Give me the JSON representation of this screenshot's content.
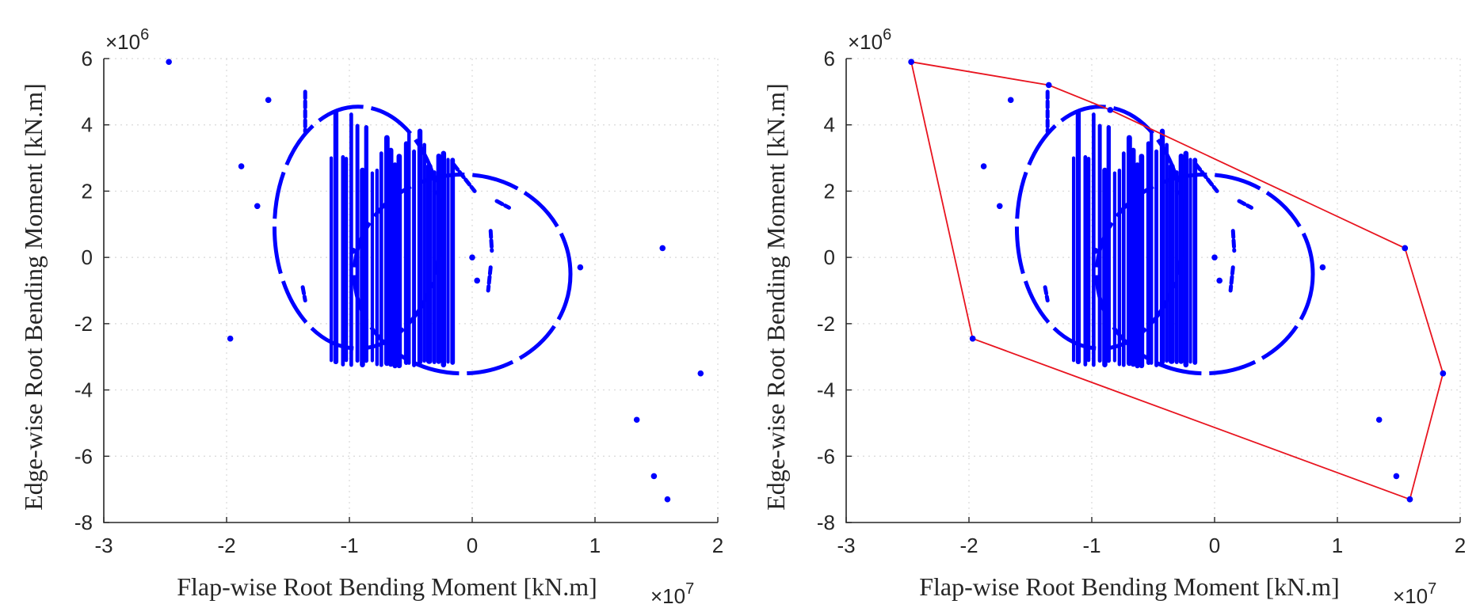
{
  "colors": {
    "points": "#0000ff",
    "hull": "#e8141f",
    "axis": "#262626",
    "grid": "#d9d9d9"
  },
  "chart_data": [
    {
      "type": "scatter",
      "xlabel": "Flap-wise Root Bending Moment [kN.m]",
      "ylabel": "Edge-wise Root Bending Moment [kN.m]",
      "x_exponent": "×10",
      "x_exponent_power": "7",
      "y_exponent": "×10",
      "y_exponent_power": "6",
      "x_scale": 10000000,
      "y_scale": 1000000,
      "xlim": [
        -3,
        2
      ],
      "ylim": [
        -8,
        6
      ],
      "xticks": [
        -3,
        -2,
        -1,
        0,
        1,
        2
      ],
      "yticks": [
        -8,
        -6,
        -4,
        -2,
        0,
        2,
        4,
        6
      ],
      "xticklabels": [
        "-3",
        "-2",
        "-1",
        "0",
        "1",
        "2"
      ],
      "yticklabels": [
        "-8",
        "-6",
        "-4",
        "-2",
        "0",
        "2",
        "4",
        "6"
      ],
      "grid": true,
      "outlier_points": [
        [
          -2.47,
          5.9
        ],
        [
          -1.66,
          4.75
        ],
        [
          -1.88,
          2.75
        ],
        [
          -1.75,
          1.55
        ],
        [
          -0.97,
          0.2
        ],
        [
          -1.97,
          -2.45
        ],
        [
          0.0,
          0.0
        ],
        [
          0.04,
          -0.7
        ],
        [
          0.88,
          -0.3
        ],
        [
          1.55,
          0.28
        ],
        [
          1.86,
          -3.5
        ],
        [
          1.34,
          -4.9
        ],
        [
          1.48,
          -6.6
        ],
        [
          1.59,
          -7.3
        ]
      ],
      "point_cloud_clusters": [
        {
          "shape": "ellipse",
          "cx": -0.93,
          "cy": 0.9,
          "rx": 0.68,
          "ry": 3.65
        },
        {
          "shape": "ellipse",
          "cx": -0.08,
          "cy": -0.5,
          "rx": 0.88,
          "ry": 3.0
        },
        {
          "shape": "vertical_strokes",
          "x_from": -1.14,
          "x_to": -0.15,
          "y_low": -3.3,
          "y_high": 4.5
        }
      ],
      "convex_hull": false
    },
    {
      "type": "scatter",
      "xlabel": "Flap-wise Root Bending Moment [kN.m]",
      "ylabel": "Edge-wise Root Bending Moment [kN.m]",
      "x_exponent": "×10",
      "x_exponent_power": "7",
      "y_exponent": "×10",
      "y_exponent_power": "6",
      "x_scale": 10000000,
      "y_scale": 1000000,
      "xlim": [
        -3,
        2
      ],
      "ylim": [
        -8,
        6
      ],
      "xticks": [
        -3,
        -2,
        -1,
        0,
        1,
        2
      ],
      "yticks": [
        -8,
        -6,
        -4,
        -2,
        0,
        2,
        4,
        6
      ],
      "xticklabels": [
        "-3",
        "-2",
        "-1",
        "0",
        "1",
        "2"
      ],
      "yticklabels": [
        "-8",
        "-6",
        "-4",
        "-2",
        "0",
        "2",
        "4",
        "6"
      ],
      "grid": true,
      "outlier_points": [
        [
          -2.47,
          5.9
        ],
        [
          -1.66,
          4.75
        ],
        [
          -1.88,
          2.75
        ],
        [
          -1.75,
          1.55
        ],
        [
          -0.97,
          0.2
        ],
        [
          -1.97,
          -2.45
        ],
        [
          0.0,
          0.0
        ],
        [
          0.04,
          -0.7
        ],
        [
          0.88,
          -0.3
        ],
        [
          1.55,
          0.28
        ],
        [
          1.86,
          -3.5
        ],
        [
          1.34,
          -4.9
        ],
        [
          1.48,
          -6.6
        ],
        [
          1.59,
          -7.3
        ]
      ],
      "point_cloud_clusters": [
        {
          "shape": "ellipse",
          "cx": -0.93,
          "cy": 0.9,
          "rx": 0.68,
          "ry": 3.65
        },
        {
          "shape": "ellipse",
          "cx": -0.08,
          "cy": -0.5,
          "rx": 0.88,
          "ry": 3.0
        },
        {
          "shape": "vertical_strokes",
          "x_from": -1.14,
          "x_to": -0.15,
          "y_low": -3.3,
          "y_high": 4.5
        }
      ],
      "convex_hull": true,
      "hull_vertices": [
        [
          -2.47,
          5.9
        ],
        [
          -1.35,
          5.2
        ],
        [
          -0.85,
          4.45
        ],
        [
          1.55,
          0.28
        ],
        [
          1.86,
          -3.5
        ],
        [
          1.59,
          -7.3
        ],
        [
          -1.97,
          -2.45
        ]
      ]
    }
  ]
}
